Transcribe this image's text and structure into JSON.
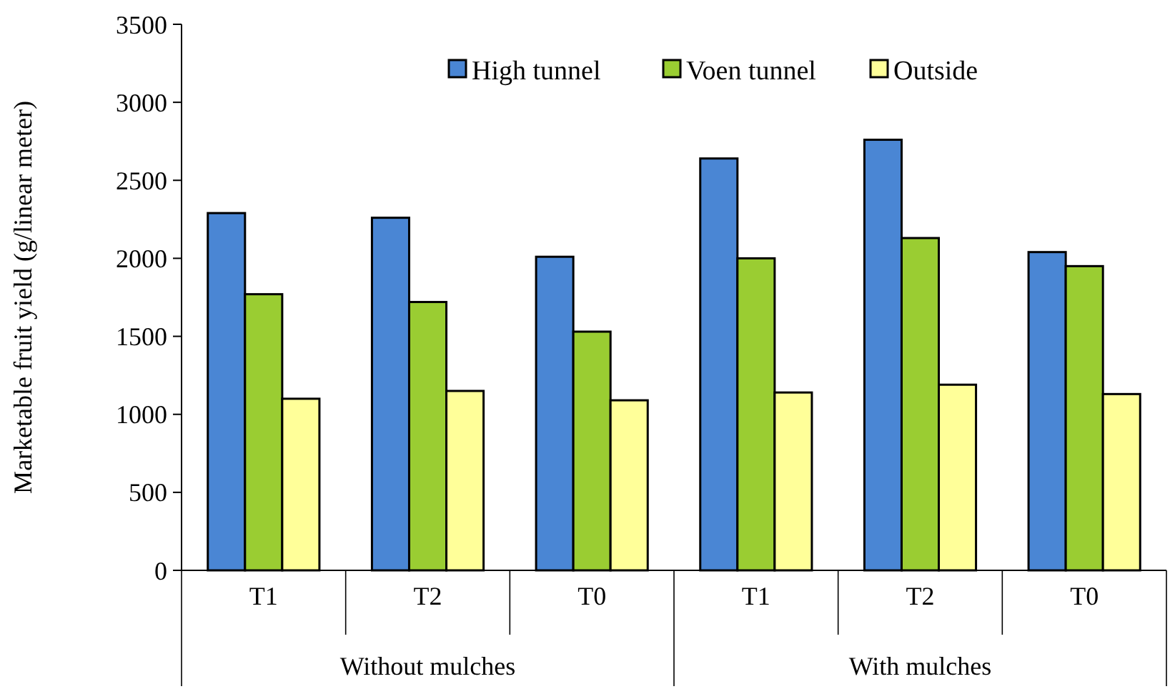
{
  "chart_data": {
    "type": "bar",
    "ylabel": "Marketable fruit yield (g/linear meter)",
    "categories": [
      "T1",
      "T2",
      "T0",
      "T1",
      "T2",
      "T0"
    ],
    "series": [
      {
        "name": "High tunnel",
        "color": "#4a86d4",
        "values": [
          2290,
          2260,
          2010,
          2640,
          2760,
          2040
        ]
      },
      {
        "name": "Voen tunnel",
        "color": "#9acd32",
        "values": [
          1770,
          1720,
          1530,
          2000,
          2130,
          1950
        ]
      },
      {
        "name": "Outside",
        "color": "#ffff99",
        "values": [
          1100,
          1150,
          1090,
          1140,
          1190,
          1130
        ]
      }
    ],
    "ylim": [
      0,
      3500
    ],
    "yticks": [
      0,
      500,
      1000,
      1500,
      2000,
      2500,
      3000,
      3500
    ],
    "legend": "top",
    "annotations": [
      "Without mulches",
      "With mulches"
    ]
  }
}
